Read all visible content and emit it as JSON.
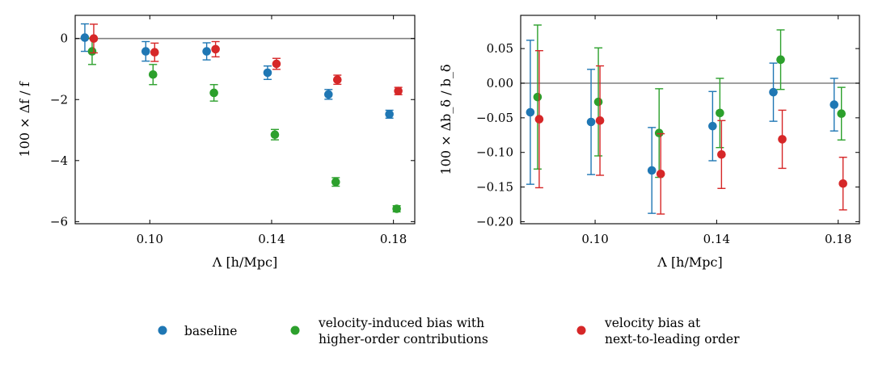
{
  "chart_data": [
    {
      "type": "scatter",
      "panel": "left",
      "xlabel": "Λ [h/Mpc]",
      "ylabel": "100 × Δf / f",
      "xlim": [
        0.0755,
        0.187
      ],
      "ylim": [
        -6.07,
        0.76
      ],
      "xticks": [
        0.1,
        0.14,
        0.18
      ],
      "xtick_labels": [
        "0.10",
        "0.14",
        "0.18"
      ],
      "yticks": [
        0,
        -2,
        -4,
        -6
      ],
      "ytick_labels": [
        "0",
        "−2",
        "−4",
        "−6"
      ],
      "reference_line": 0,
      "series": [
        {
          "name": "baseline",
          "color": "#1f77b4",
          "x": [
            0.08,
            0.1,
            0.12,
            0.14,
            0.16,
            0.18
          ],
          "y": [
            0.03,
            -0.42,
            -0.42,
            -1.12,
            -1.83,
            -2.48
          ],
          "err": [
            0.45,
            0.32,
            0.28,
            0.22,
            0.16,
            0.13
          ]
        },
        {
          "name": "velocity-induced bias with higher-order contributions",
          "color": "#2ca02c",
          "x": [
            0.08,
            0.1,
            0.12,
            0.14,
            0.16,
            0.18
          ],
          "y": [
            -0.42,
            -1.18,
            -1.78,
            -3.15,
            -4.7,
            -5.58
          ],
          "err": [
            0.43,
            0.33,
            0.27,
            0.17,
            0.14,
            0.1
          ]
        },
        {
          "name": "velocity bias at next-to-leading order",
          "color": "#d62728",
          "x": [
            0.08,
            0.1,
            0.12,
            0.14,
            0.16,
            0.18
          ],
          "y": [
            0.0,
            -0.45,
            -0.35,
            -0.83,
            -1.35,
            -1.72
          ],
          "err": [
            0.47,
            0.3,
            0.25,
            0.18,
            0.15,
            0.12
          ]
        }
      ]
    },
    {
      "type": "scatter",
      "panel": "right",
      "xlabel": "Λ [h/Mpc]",
      "ylabel": "100 × Δb_δ / b_δ",
      "xlim": [
        0.0755,
        0.187
      ],
      "ylim": [
        -0.203,
        0.098
      ],
      "xticks": [
        0.1,
        0.14,
        0.18
      ],
      "xtick_labels": [
        "0.10",
        "0.14",
        "0.18"
      ],
      "yticks": [
        0.05,
        0.0,
        -0.05,
        -0.1,
        -0.15,
        -0.2
      ],
      "ytick_labels": [
        "0.05",
        "0.00",
        "−0.05",
        "−0.10",
        "−0.15",
        "−0.20"
      ],
      "reference_line": 0,
      "series": [
        {
          "name": "baseline",
          "color": "#1f77b4",
          "x": [
            0.08,
            0.1,
            0.12,
            0.14,
            0.16,
            0.18
          ],
          "y": [
            -0.042,
            -0.056,
            -0.126,
            -0.062,
            -0.013,
            -0.031
          ],
          "err": [
            0.104,
            0.076,
            0.062,
            0.05,
            0.042,
            0.038
          ]
        },
        {
          "name": "velocity-induced bias with higher-order contributions",
          "color": "#2ca02c",
          "x": [
            0.08,
            0.1,
            0.12,
            0.14,
            0.16,
            0.18
          ],
          "y": [
            -0.02,
            -0.027,
            -0.072,
            -0.043,
            0.034,
            -0.044
          ],
          "err": [
            0.104,
            0.078,
            0.064,
            0.05,
            0.043,
            0.038
          ]
        },
        {
          "name": "velocity bias at next-to-leading order",
          "color": "#d62728",
          "x": [
            0.08,
            0.1,
            0.12,
            0.14,
            0.16,
            0.18
          ],
          "y": [
            -0.052,
            -0.054,
            -0.131,
            -0.103,
            -0.081,
            -0.145
          ],
          "err": [
            0.099,
            0.079,
            0.058,
            0.049,
            0.042,
            0.038
          ]
        }
      ]
    }
  ],
  "legend": {
    "items": [
      {
        "color": "#1f77b4",
        "lines": [
          "baseline"
        ]
      },
      {
        "color": "#2ca02c",
        "lines": [
          "velocity-induced bias with",
          "higher-order contributions"
        ]
      },
      {
        "color": "#d62728",
        "lines": [
          "velocity bias at",
          "next-to-leading order"
        ]
      }
    ]
  }
}
